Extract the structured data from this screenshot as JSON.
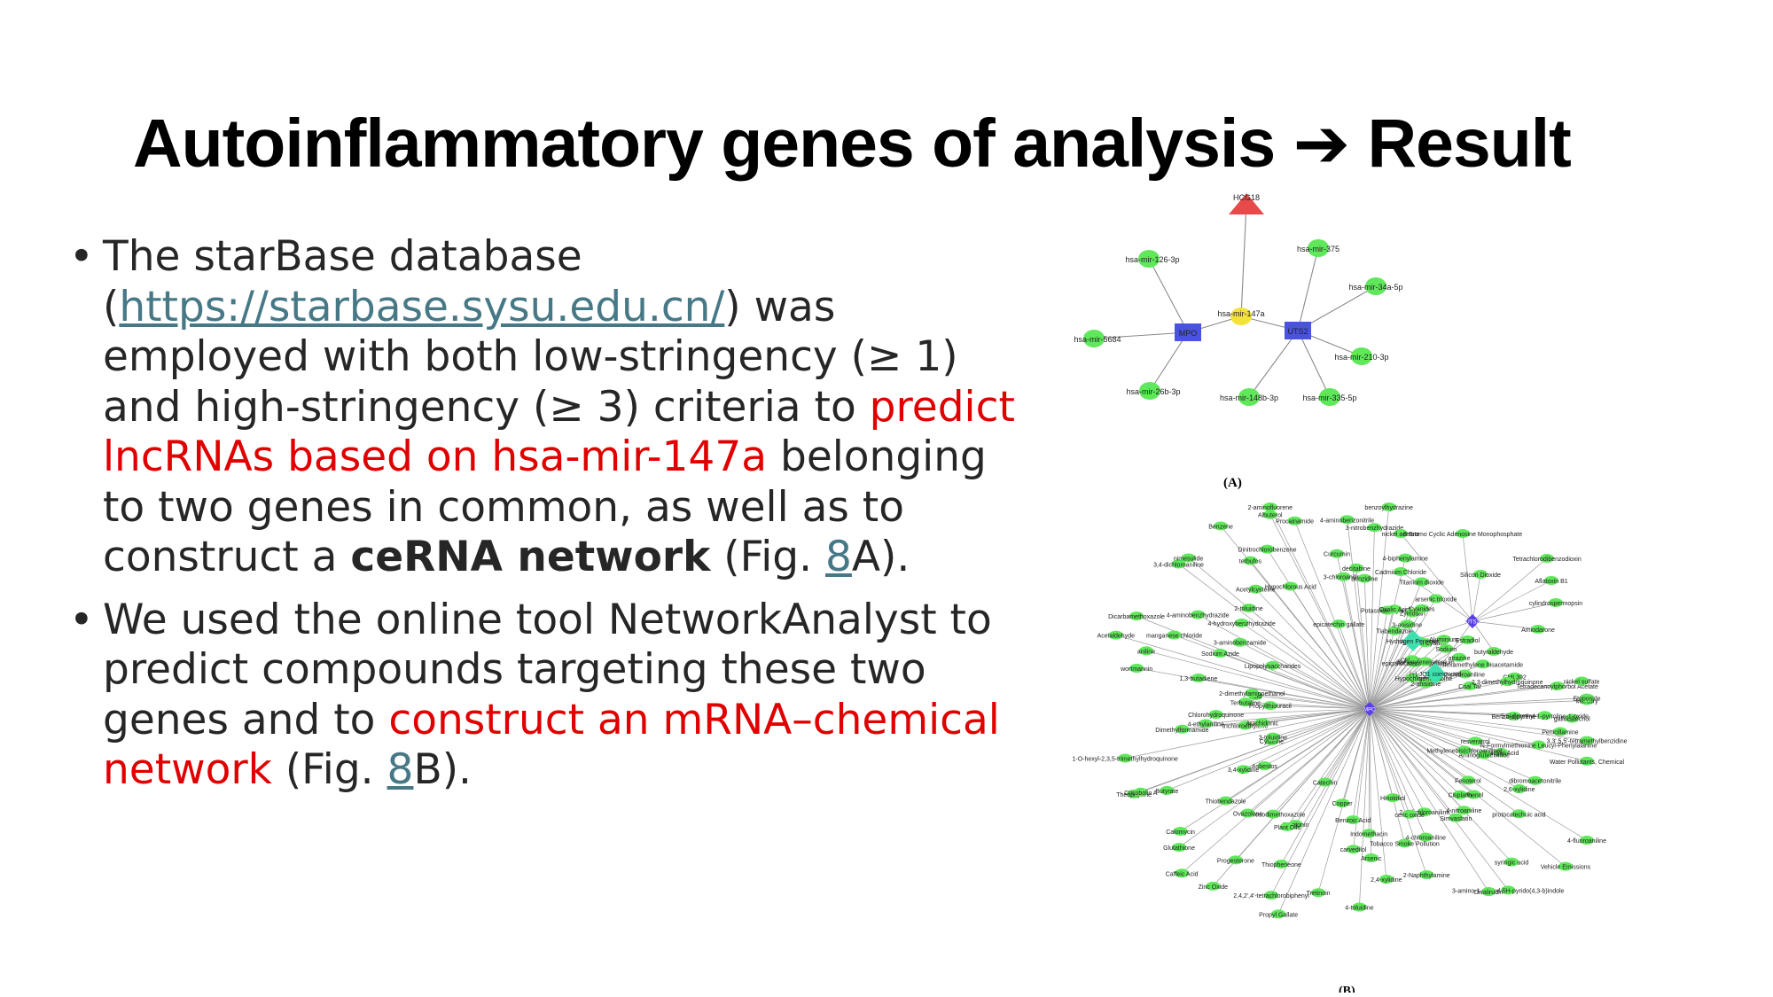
{
  "title": "Autoinflammatory genes of analysis ➔ Result",
  "bullets": [
    {
      "lead": " The starBase database (",
      "link": "https://starbase.sysu.edu.cn/",
      "mid": ") was employed with both low-stringency (≥ 1) and high-stringency (≥ 3) criteria to ",
      "red": "predict lncRNAs based on hsa-mir-147a",
      "tail1": " belonging to two genes in common, as well as to construct a ",
      "bold": "ceRNA network",
      "tail2": " (Fig. ",
      "fig": "8",
      "tail3": "A)."
    },
    {
      "lead": "We used the online tool NetworkAnalyst to predict compounds targeting these two genes and to ",
      "red": "construct an mRNA–chemical network",
      "tail1": " (Fig. ",
      "fig": "8",
      "tail2": "B)."
    }
  ],
  "figA": {
    "label": "(A)",
    "nodes": [
      {
        "id": "HCG18",
        "label": "HCG18",
        "shape": "triangle",
        "color": "#e84a4a"
      },
      {
        "id": "mir147a",
        "label": "hsa-mir-147a",
        "shape": "circle",
        "color": "#f3e23a"
      },
      {
        "id": "MPO",
        "label": "MPO",
        "shape": "square",
        "color": "#4a52e0"
      },
      {
        "id": "UTS2",
        "label": "UTS2",
        "shape": "square",
        "color": "#4a52e0"
      },
      {
        "id": "m126",
        "label": "hsa-mir-126-3p",
        "shape": "circle",
        "color": "#5fe85a"
      },
      {
        "id": "m5684",
        "label": "hsa-mir-5684",
        "shape": "circle",
        "color": "#5fe85a"
      },
      {
        "id": "m26b",
        "label": "hsa-mir-26b-3p",
        "shape": "circle",
        "color": "#5fe85a"
      },
      {
        "id": "m375",
        "label": "hsa-mir-375",
        "shape": "circle",
        "color": "#5fe85a"
      },
      {
        "id": "m34a",
        "label": "hsa-mir-34a-5p",
        "shape": "circle",
        "color": "#5fe85a"
      },
      {
        "id": "m210",
        "label": "hsa-mir-210-3p",
        "shape": "circle",
        "color": "#5fe85a"
      },
      {
        "id": "m148b",
        "label": "hsa-mir-148b-3p",
        "shape": "circle",
        "color": "#5fe85a"
      },
      {
        "id": "m335",
        "label": "hsa-mir-335-5p",
        "shape": "circle",
        "color": "#5fe85a"
      }
    ]
  },
  "figB": {
    "label": "(B)",
    "hub1": "MPO",
    "hub2": "UTS2",
    "diamonds": [
      "Hydrogen Peroxide",
      "(+)-JQ1 compound"
    ],
    "uts2_neighbors": [
      "nickel acetate",
      "8-Bromo Cyclic Adenosine Monophosphate",
      "Tetrachlorodibenzodioxin",
      "Cadmium Chloride",
      "Silicon Dioxide",
      "Aflatoxin B1",
      "cylindrospermopsin",
      "Amiodarone",
      "butyraldehyde"
    ],
    "compounds": [
      "gallocatechol",
      "Benzo(a)pyrene",
      "Penicillamine",
      "3,3',5,5'-tetramethylbenzidine",
      "N-Formylmethionine Leucyl-Phenylalanine",
      "Water Pollutants, Chemical",
      "resveratrol",
      "Salicylic Acid",
      "Aminoglutethimide",
      "dibromoacetonitrile",
      "Methylenebis(chloroaniline)",
      "4-fluoroaniline",
      "2,6-xylidine",
      "Fenoterol",
      "protocatechuic acid",
      "Phenol",
      "Vehicle Emissions",
      "Cisplatin",
      "4-nitroaniline",
      "syringic acid",
      "Simvastatin",
      "3-amino-1-methyl-5H-pyrido(4,3-b)indole",
      "Divalirudin",
      "2,4-dichloroaniline",
      "4-chloroaniline",
      "2-Naphthylamine",
      "ceric oxide",
      "Hinokitiol",
      "Tobacco Smoke Pollution",
      "2,4-xylidine",
      "Indomethacin",
      "Arsenic",
      "4-toluidine",
      "carvedilol",
      "Benzoic Acid",
      "Copper",
      "Tretinoin",
      "Propyl Gallate",
      "2,4,2',4'-tetrachlorobiphenyl",
      "Thiopheneone",
      "Catechin",
      "Serotonin",
      "Plant Oils",
      "Progesterone",
      "Zinc Oxide",
      "4-nitrosodimethoxazole",
      "Ovazolone",
      "Caffeic Acid",
      "Glutathione",
      "Thiobendazole",
      "Calomycin",
      "3,4-xylidine",
      "Asbestos",
      "Butyrate",
      "Theophylline",
      "Crisobolin A",
      "Cysteine",
      "3-toluidine",
      "1-O-hexyl-2,3,5-trimethylhydroquinone",
      "trichloroethylene",
      "Arachidonic",
      "Dimethylformamide",
      "4-ethylaniline",
      "Chlorohydroquinone",
      "Terbutaline",
      "Propylthiouracil",
      "Acid",
      "2-dimethylaminoethanol",
      "1,3-butadiene",
      "wortmannin",
      "aniline",
      "Acetaldehyde",
      "manganese chloride",
      "Sodium Azide",
      "Dicarbamethoxazole",
      "Lipopolysaccharides",
      "3-aminobenzamide",
      "4-aminobenzhydrazide",
      "4-hydroxybenzhydrazide",
      "3,4-dichloroaniline",
      "2-toluidine",
      "nimesulide",
      "Acetylcysteine",
      "terbufos",
      "Benzene",
      "Hypochlorous Acid",
      "Dinitrochlorobenzene",
      "Albuterol",
      "2-aminofluorene",
      "Procainamide",
      "epicatechin gallate",
      "Curcumin",
      "3-chloroaniline",
      "4-aminobenzonitrile",
      "decitabine",
      "3-nitrobenzhydrazide",
      "benzidine",
      "benzoylhydrazine",
      "Potassium Cyanide",
      "Oxalic Acid",
      "4-biphenylamine",
      "Tiabendazole",
      "3-anisidine",
      "Titanium dioxide",
      "Zymosan",
      "Cyanides",
      "arsenic trioxide",
      "Ascorbic Acid",
      "Chloride",
      "Sodium Cyanide",
      "Aluminium",
      "epigallocatechin gallate",
      "diphenyleneiodonium",
      "Sodium",
      "Hypochlorite",
      "Estradiol",
      "atrazine",
      "2-anisidine",
      "gemcitabine",
      "2-chloroaniline",
      "hexamethylene bisacetamide",
      "Coal Tar",
      "CMI 392",
      "2,3-dimethylhydroquinone",
      "Tetradecanoylphorbol Acetate",
      "nickel sulfate",
      "Mercury",
      "Etoposide",
      "5,5-dimethyl-1-pyrroline-1-oxide"
    ]
  }
}
